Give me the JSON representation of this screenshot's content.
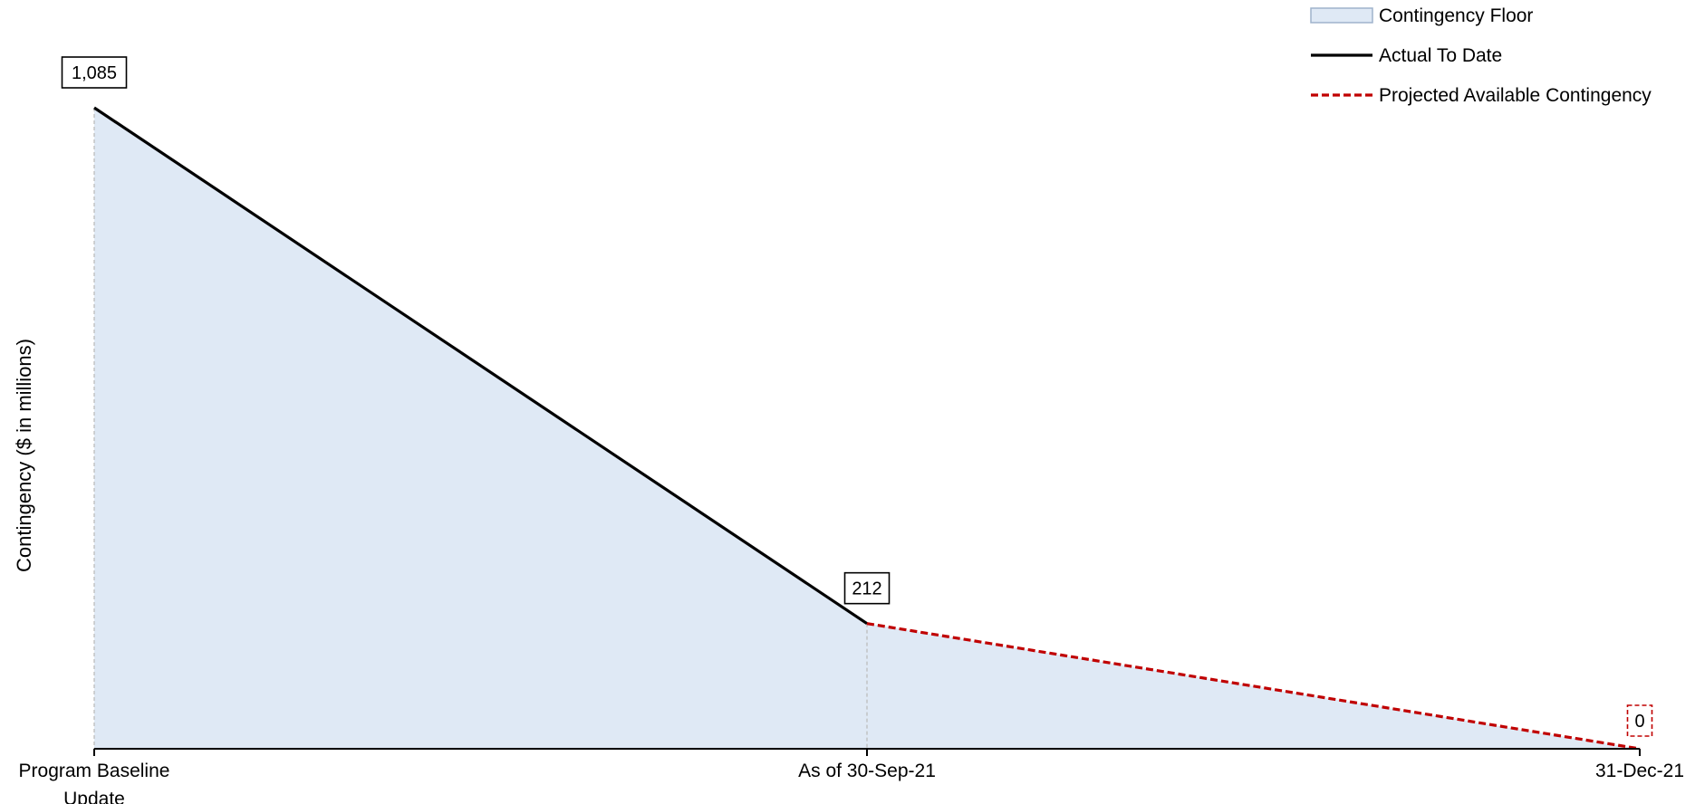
{
  "chart_data": {
    "type": "area",
    "categories": [
      "Program Baseline Update",
      "As of 30-Sep-21",
      "31-Dec-21"
    ],
    "category_label_lines": [
      [
        "Program Baseline",
        "Update"
      ],
      [
        "As of 30-Sep-21"
      ],
      [
        "31-Dec-21"
      ]
    ],
    "series": [
      {
        "name": "Contingency Floor",
        "style": "filled-area",
        "values": [
          1085,
          212,
          0
        ]
      },
      {
        "name": "Actual To Date",
        "style": "solid-line",
        "values": [
          1085,
          212,
          null
        ]
      },
      {
        "name": "Projected Available Contingency",
        "style": "dashed-line",
        "values": [
          null,
          212,
          0
        ]
      }
    ],
    "data_labels": [
      {
        "category_index": 0,
        "text": "1,085",
        "style": "solid-box"
      },
      {
        "category_index": 1,
        "text": "212",
        "style": "solid-box"
      },
      {
        "category_index": 2,
        "text": "0",
        "style": "dashed-red-box"
      }
    ],
    "ylabel": "Contingency ($ in millions)",
    "xlabel": "",
    "ylim": [
      0,
      1085
    ],
    "y_axis_visible": false,
    "grid": false,
    "legend_position": "top-right",
    "colors": {
      "area_fill": "#dfe9f5",
      "area_edge": "#9fb3cc",
      "actual_line": "#000000",
      "projected_line": "#c00000",
      "drop_line": "#b8b8b8",
      "axis": "#000000"
    }
  }
}
